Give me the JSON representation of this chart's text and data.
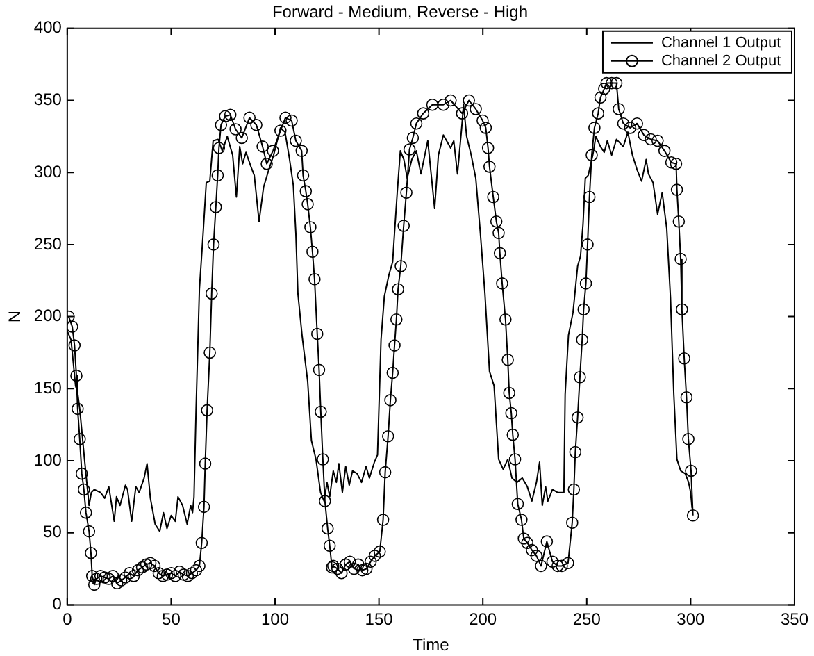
{
  "chart_data": {
    "type": "line",
    "title": "Forward - Medium, Reverse - High",
    "xlabel": "Time",
    "ylabel": "N",
    "xlim": [
      0,
      350
    ],
    "xticks": [
      0,
      50,
      100,
      150,
      200,
      250,
      300,
      350
    ],
    "ylim": [
      0,
      400
    ],
    "yticks": [
      0,
      50,
      100,
      150,
      200,
      250,
      300,
      350,
      400
    ],
    "grid": false,
    "legend": "top right",
    "line_style": "solid",
    "series": [
      {
        "name": "Channel 1 Output",
        "color": "#000000",
        "marker": "none",
        "x": [
          0,
          1.8,
          4,
          5,
          6,
          8.3,
          10.5,
          11.6,
          13,
          16,
          18,
          20,
          22.6,
          23.7,
          25.4,
          28,
          29,
          31,
          33,
          34.6,
          37,
          38.4,
          40,
          42.3,
          44.5,
          46.3,
          48,
          50,
          52,
          53.3,
          55.5,
          57.7,
          59.4,
          60.3,
          61,
          62,
          63.6,
          65.4,
          66.9,
          68.6,
          70.2,
          72.6,
          74.6,
          77,
          79.6,
          81.4,
          83,
          84.4,
          86,
          88.4,
          90,
          92.3,
          94.5,
          97,
          99.3,
          102.6,
          104.8,
          107,
          108.8,
          110,
          111,
          113,
          115.7,
          117.5,
          119.7,
          121.9,
          123.6,
          125,
          126.3,
          128,
          129.5,
          130.7,
          132.4,
          134,
          135.7,
          137.3,
          139.5,
          141.6,
          143.8,
          145.4,
          147.8,
          149.3,
          151,
          152.6,
          154.8,
          156.6,
          157.5,
          158.8,
          160.3,
          162,
          163.6,
          165.8,
          168,
          170.2,
          173.5,
          176.8,
          178.6,
          181,
          184.5,
          186,
          187.8,
          190,
          190.7,
          192.2,
          194.4,
          196.6,
          198.8,
          201,
          203.2,
          205.4,
          207.6,
          209.8,
          212,
          214,
          216.4,
          219,
          221.4,
          223.6,
          225.8,
          227.3,
          228.6,
          230.2,
          231.3,
          233.5,
          236,
          239,
          239.6,
          241.2,
          243.4,
          245.6,
          247,
          248.2,
          249.3,
          250.7,
          252.9,
          254.4,
          256.6,
          258.4,
          259.9,
          262,
          264.3,
          267.6,
          269.8,
          272,
          274.2,
          276.4,
          278.6,
          279.7,
          281.9,
          284.1,
          286.3,
          288.5,
          290.3,
          291.9,
          293.4,
          295.2,
          297.4,
          299,
          300,
          300.7
        ],
        "values": [
          190,
          184,
          152,
          147,
          136,
          101,
          69,
          78,
          80,
          78,
          74,
          82,
          58,
          75,
          69,
          83,
          80,
          58,
          82,
          78,
          88,
          98,
          74,
          56,
          51,
          64,
          53,
          62,
          58,
          75,
          69,
          56,
          69,
          64,
          75,
          136,
          219,
          258,
          293,
          294,
          322,
          323,
          315,
          325,
          312,
          283,
          318,
          306,
          314,
          304,
          298,
          266,
          290,
          302,
          312,
          331,
          328,
          309,
          291,
          258,
          216,
          187,
          155,
          114,
          101,
          78,
          72,
          85,
          75,
          93,
          85,
          98,
          78,
          96,
          83,
          93,
          91,
          85,
          96,
          88,
          99,
          104,
          184,
          214,
          229,
          238,
          258,
          286,
          315,
          309,
          296,
          309,
          315,
          299,
          322,
          275,
          312,
          326,
          317,
          322,
          299,
          334,
          347,
          325,
          312,
          296,
          258,
          216,
          162,
          152,
          101,
          94,
          101,
          88,
          85,
          88,
          82,
          72,
          85,
          99,
          69,
          82,
          72,
          80,
          78,
          78,
          146,
          187,
          203,
          235,
          242,
          264,
          296,
          298,
          312,
          325,
          318,
          314,
          322,
          312,
          323,
          318,
          328,
          312,
          302,
          294,
          309,
          299,
          293,
          271,
          286,
          261,
          213,
          146,
          101,
          93,
          91,
          85,
          78,
          67
        ]
      },
      {
        "name": "Channel 2 Output",
        "color": "#000000",
        "marker": "circle",
        "x": [
          0.7,
          2.4,
          3.5,
          4.4,
          5,
          6,
          7,
          8,
          9,
          10.5,
          11.4,
          12,
          13,
          14,
          16,
          18,
          20,
          22,
          24,
          26,
          28,
          30,
          32,
          34,
          36,
          38,
          40,
          42,
          44,
          46,
          48,
          50,
          52,
          54,
          56,
          58,
          60,
          62,
          63.6,
          64.7,
          65.8,
          66.4,
          67.3,
          68.6,
          69.5,
          70.4,
          71.5,
          72.4,
          73,
          74,
          76,
          78.5,
          81,
          84,
          87.7,
          91,
          94,
          96,
          99,
          102.6,
          105,
          108,
          110,
          112.8,
          113.5,
          114.8,
          115.7,
          117,
          118,
          119,
          120.3,
          121.2,
          122,
          123,
          124,
          125.3,
          126.3,
          127.4,
          128,
          130,
          132,
          134,
          136,
          138,
          140,
          142,
          144,
          146,
          148,
          150.4,
          152,
          153,
          154.4,
          155.5,
          156.6,
          157.5,
          158.4,
          159.2,
          160.5,
          161.9,
          163.2,
          164.7,
          166.3,
          168,
          171.3,
          175.7,
          181,
          184.5,
          190,
          193.3,
          196.6,
          199.9,
          201.4,
          202.5,
          203.2,
          205,
          206.5,
          207.6,
          208.2,
          209.3,
          210.9,
          212,
          212.7,
          213.7,
          214.4,
          215.5,
          216.8,
          218.6,
          219.7,
          221.4,
          223.6,
          225.8,
          228,
          230.8,
          233.5,
          236,
          238,
          241,
          243,
          243.8,
          244.5,
          245.6,
          246.7,
          247.8,
          248.5,
          249.6,
          250.4,
          251.3,
          252.4,
          253.7,
          255.5,
          256.6,
          258.4,
          259.5,
          262,
          264.3,
          265.4,
          267.6,
          270.9,
          274.2,
          277.5,
          280.8,
          284.1,
          287.4,
          290.7,
          293,
          293.4,
          294.3,
          295.2,
          295.8,
          296.9,
          298,
          298.9,
          300.2,
          301.1
        ],
        "values": [
          200,
          193,
          180,
          159,
          136,
          115,
          91,
          80,
          64,
          51,
          36,
          20,
          14,
          18,
          20,
          19,
          18,
          20,
          15,
          17,
          19,
          22,
          20,
          24,
          26,
          28,
          29,
          27,
          22,
          20,
          21,
          22,
          20,
          23,
          21,
          20,
          22,
          24,
          27,
          43,
          68,
          98,
          135,
          175,
          216,
          250,
          276,
          298,
          317,
          333,
          339,
          340,
          330,
          324,
          338,
          333,
          318,
          306,
          315,
          329,
          338,
          336,
          322,
          315,
          298,
          287,
          278,
          262,
          245,
          226,
          188,
          163,
          134,
          101,
          72,
          53,
          41,
          26,
          27,
          25,
          22,
          28,
          30,
          25,
          28,
          24,
          25,
          30,
          34,
          37,
          59,
          92,
          117,
          142,
          161,
          180,
          198,
          219,
          235,
          263,
          286,
          316,
          324,
          334,
          341,
          347,
          347,
          350,
          341,
          350,
          344,
          336,
          331,
          317,
          304,
          283,
          266,
          258,
          244,
          223,
          198,
          170,
          147,
          133,
          118,
          101,
          70,
          59,
          46,
          43,
          38,
          34,
          27,
          44,
          30,
          27,
          27,
          29,
          57,
          80,
          106,
          130,
          158,
          184,
          205,
          223,
          250,
          283,
          312,
          331,
          341,
          352,
          358,
          362,
          362,
          362,
          344,
          334,
          331,
          334,
          326,
          323,
          322,
          315,
          307,
          306,
          288,
          266,
          240,
          205,
          171,
          144,
          115,
          93,
          62
        ]
      }
    ]
  }
}
